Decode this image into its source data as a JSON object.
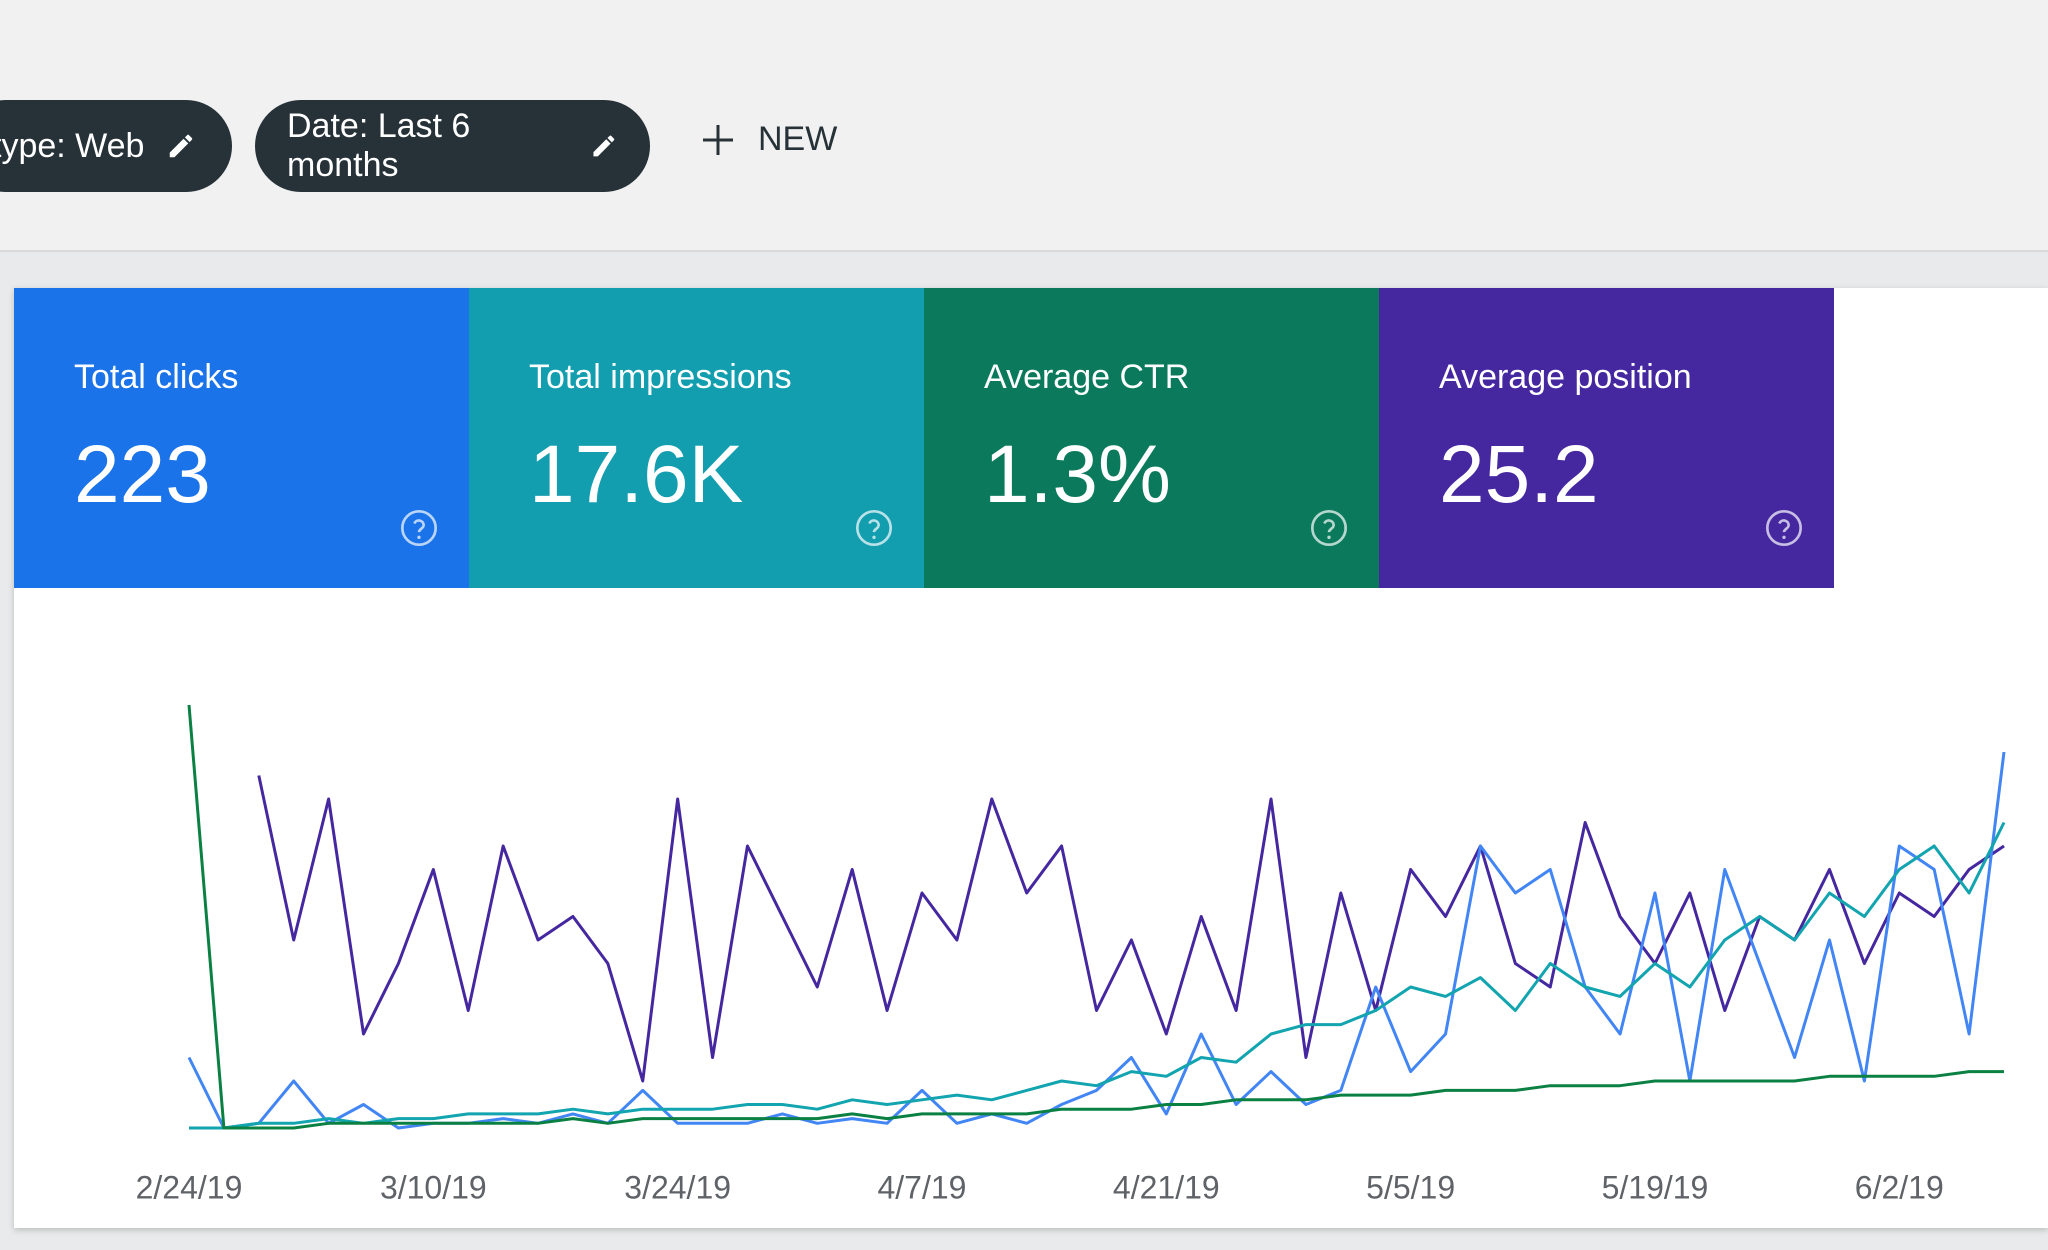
{
  "filters": [
    "type: Web",
    "Date: Last 6 months"
  ],
  "new_button": "NEW",
  "metrics": [
    {
      "label": "Total clicks",
      "value": "223",
      "color": "#1a73e8"
    },
    {
      "label": "Total impressions",
      "value": "17.6K",
      "color": "#129eaf"
    },
    {
      "label": "Average CTR",
      "value": "1.3%",
      "color": "#0b7a5c"
    },
    {
      "label": "Average position",
      "value": "25.2",
      "color": "#4527a0"
    }
  ],
  "chart_data": {
    "type": "line",
    "xlim": [
      0,
      52
    ],
    "ylim": [
      0,
      100
    ],
    "xticks": [
      {
        "value": 0,
        "label": "2/24/19"
      },
      {
        "value": 7,
        "label": "3/10/19"
      },
      {
        "value": 14,
        "label": "3/24/19"
      },
      {
        "value": 21,
        "label": "4/7/19"
      },
      {
        "value": 28,
        "label": "4/21/19"
      },
      {
        "value": 35,
        "label": "5/5/19"
      },
      {
        "value": 42,
        "label": "5/19/19"
      },
      {
        "value": 49,
        "label": "6/2/19"
      }
    ],
    "series": [
      {
        "color": "#4527a0",
        "values": [
          null,
          null,
          75,
          40,
          70,
          20,
          35,
          55,
          25,
          60,
          40,
          45,
          35,
          10,
          70,
          15,
          60,
          45,
          30,
          55,
          25,
          50,
          40,
          70,
          50,
          60,
          25,
          40,
          20,
          45,
          25,
          70,
          15,
          50,
          25,
          55,
          45,
          60,
          35,
          30,
          65,
          45,
          35,
          50,
          25,
          45,
          40,
          55,
          35,
          50,
          45,
          55,
          60
        ]
      },
      {
        "color": "#4285f4",
        "values": [
          15,
          0,
          1,
          10,
          1,
          5,
          0,
          1,
          1,
          2,
          1,
          3,
          1,
          8,
          1,
          1,
          1,
          3,
          1,
          2,
          1,
          8,
          1,
          3,
          1,
          5,
          8,
          15,
          3,
          20,
          5,
          12,
          5,
          8,
          30,
          12,
          20,
          60,
          50,
          55,
          30,
          20,
          50,
          10,
          55,
          35,
          15,
          40,
          10,
          60,
          55,
          20,
          80
        ]
      },
      {
        "color": "#12a4af",
        "values": [
          0,
          0,
          1,
          1,
          2,
          1,
          2,
          2,
          3,
          3,
          3,
          4,
          3,
          4,
          4,
          4,
          5,
          5,
          4,
          6,
          5,
          6,
          7,
          6,
          8,
          10,
          9,
          12,
          11,
          15,
          14,
          20,
          22,
          22,
          25,
          30,
          28,
          32,
          25,
          35,
          30,
          28,
          35,
          30,
          40,
          45,
          40,
          50,
          45,
          55,
          60,
          50,
          65
        ]
      },
      {
        "color": "#0b8043",
        "values": [
          90,
          0,
          0,
          0,
          1,
          1,
          1,
          1,
          1,
          1,
          1,
          2,
          1,
          2,
          2,
          2,
          2,
          2,
          2,
          3,
          2,
          3,
          3,
          3,
          3,
          4,
          4,
          4,
          5,
          5,
          6,
          6,
          6,
          7,
          7,
          7,
          8,
          8,
          8,
          9,
          9,
          9,
          10,
          10,
          10,
          10,
          10,
          11,
          11,
          11,
          11,
          12,
          12
        ]
      }
    ]
  }
}
